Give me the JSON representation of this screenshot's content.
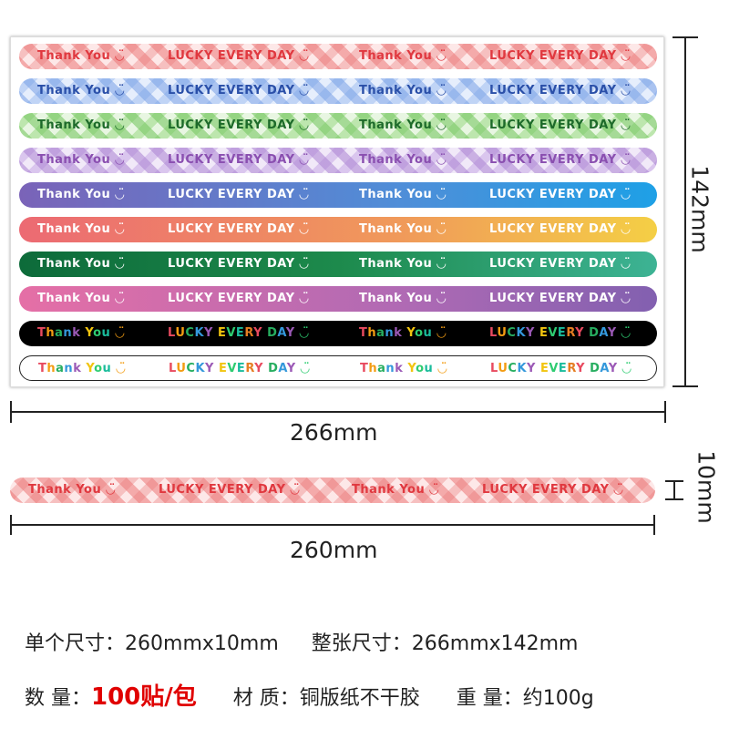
{
  "sticker_text": {
    "thank_you": "Thank You",
    "lucky": "LUCKY EVERY DAY",
    "smile": "◡̈"
  },
  "strips": [
    {
      "style": "plaid-red",
      "text_color": "#e0383f"
    },
    {
      "style": "plaid-blue",
      "text_color": "#2a4fa8"
    },
    {
      "style": "plaid-green",
      "text_color": "#1d6a2a"
    },
    {
      "style": "plaid-purple",
      "text_color": "#8a4fb0"
    },
    {
      "style": "grad-blue",
      "text_color": "#ffffff"
    },
    {
      "style": "grad-sunset",
      "text_color": "#ffffff"
    },
    {
      "style": "grad-green",
      "text_color": "#ffffff"
    },
    {
      "style": "grad-pink",
      "text_color": "#ffffff"
    },
    {
      "style": "solid-black",
      "text_color": "rainbow"
    },
    {
      "style": "outline-white",
      "text_color": "rainbow"
    }
  ],
  "dimensions": {
    "sheet_height": "142mm",
    "sheet_width": "266mm",
    "strip_width": "260mm",
    "strip_height": "10mm"
  },
  "info": {
    "line1_single_label": "单个尺寸：",
    "line1_single_value": "260mmx10mm",
    "line1_sheet_label": "整张尺寸：",
    "line1_sheet_value": "266mmx142mm",
    "line2_qty_label": "数  量：",
    "line2_qty_value": "100贴/包",
    "line2_material_label": "材  质：",
    "line2_material_value": "铜版纸不干胶",
    "line2_weight_label": "重  量：",
    "line2_weight_value": "约100g"
  }
}
